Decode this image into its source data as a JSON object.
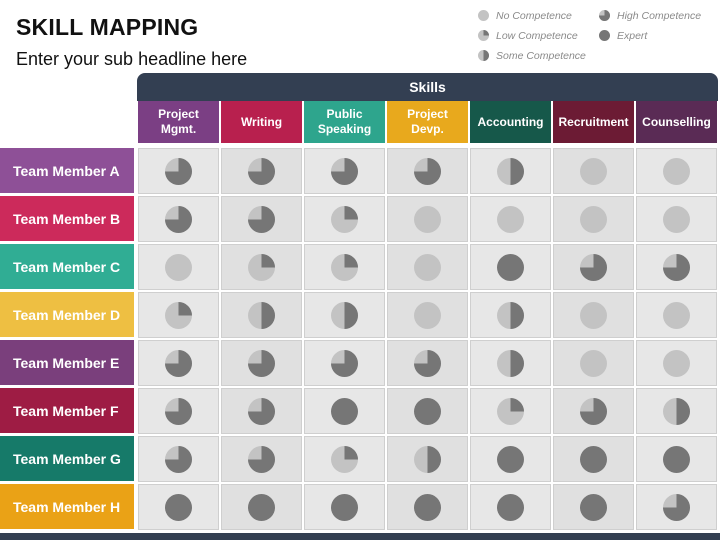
{
  "header": {
    "title": "SKILL MAPPING",
    "subtitle": "Enter your sub headline here"
  },
  "legend": [
    {
      "label": "No Competence",
      "level": 0
    },
    {
      "label": "High Competence",
      "level": 3
    },
    {
      "label": "Low Competence",
      "level": 1
    },
    {
      "label": "Expert",
      "level": 4
    },
    {
      "label": "Some Competence",
      "level": 2
    }
  ],
  "skills_label": "Skills",
  "colors": {
    "band": "#333f52",
    "pie_light": "#c3c3c3",
    "pie_dark": "#767676",
    "purple": "#7b3f84",
    "crimson": "#b8204e",
    "teal": "#2ea58d",
    "gold": "#e8a91d",
    "darkgreen": "#16584a",
    "maroon": "#6c1b34",
    "plum": "#5a2b55"
  },
  "skills": [
    {
      "label": "Project\nMgmt.",
      "color": "#7b3f84"
    },
    {
      "label": "Writing",
      "color": "#b8204e"
    },
    {
      "label": "Public\nSpeaking",
      "color": "#2ea58d"
    },
    {
      "label": "Project\nDevp.",
      "color": "#e8a91d"
    },
    {
      "label": "Accounting",
      "color": "#16584a"
    },
    {
      "label": "Recruitment",
      "color": "#6c1b34"
    },
    {
      "label": "Counselling",
      "color": "#5a2b55"
    }
  ],
  "members": [
    {
      "name": "Team Member A",
      "color": "#8e5097",
      "levels": [
        3,
        3,
        3,
        3,
        2,
        0,
        0
      ]
    },
    {
      "name": "Team Member B",
      "color": "#cc2a5b",
      "levels": [
        3,
        3,
        1,
        0,
        0,
        0,
        0
      ]
    },
    {
      "name": "Team Member C",
      "color": "#30ad94",
      "levels": [
        0,
        1,
        1,
        0,
        4,
        3,
        3
      ]
    },
    {
      "name": "Team Member D",
      "color": "#eebf42",
      "levels": [
        1,
        2,
        2,
        0,
        2,
        0,
        0
      ]
    },
    {
      "name": "Team Member E",
      "color": "#7a3f7c",
      "levels": [
        3,
        3,
        3,
        3,
        2,
        0,
        0
      ]
    },
    {
      "name": "Team Member F",
      "color": "#9e1c44",
      "levels": [
        3,
        3,
        4,
        4,
        1,
        3,
        2
      ]
    },
    {
      "name": "Team Member G",
      "color": "#167a69",
      "levels": [
        3,
        3,
        1,
        2,
        4,
        4,
        4
      ]
    },
    {
      "name": "Team Member H",
      "color": "#eaa216",
      "levels": [
        4,
        4,
        4,
        4,
        4,
        4,
        3
      ]
    }
  ]
}
